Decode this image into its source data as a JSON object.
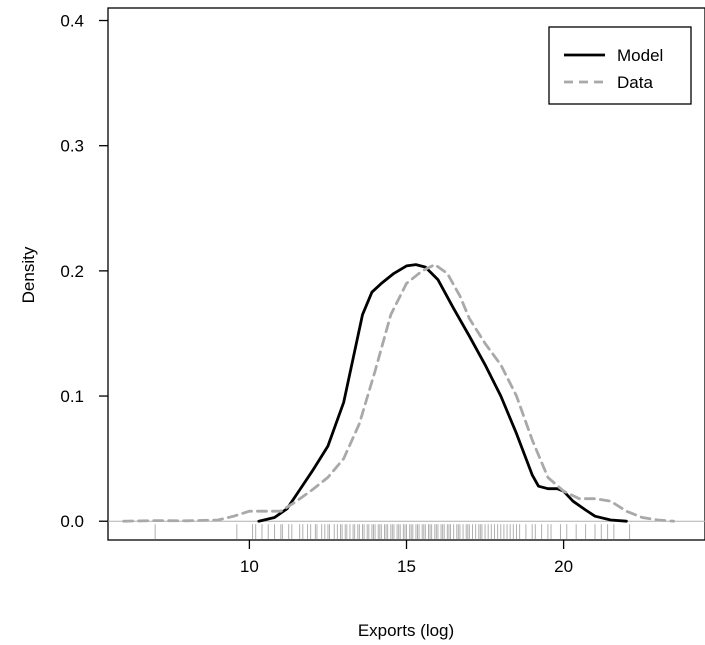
{
  "chart_data": {
    "type": "line",
    "title": "",
    "xlabel": "Exports (log)",
    "ylabel": "Density",
    "xlim": [
      5.5,
      24.5
    ],
    "ylim": [
      -0.015,
      0.41
    ],
    "xticks": [
      10,
      15,
      20
    ],
    "yticks": [
      0.0,
      0.1,
      0.2,
      0.3,
      0.4
    ],
    "xtick_labels": [
      "10",
      "15",
      "20"
    ],
    "ytick_labels": [
      "0.0",
      "0.1",
      "0.2",
      "0.3",
      "0.4"
    ],
    "legend_position": "top-right",
    "grid": false,
    "reference_line_y": 0,
    "series": [
      {
        "name": "Model",
        "color": "#000000",
        "dash": "solid",
        "x": [
          10.3,
          10.8,
          11.2,
          11.6,
          12.0,
          12.5,
          13.0,
          13.3,
          13.6,
          13.9,
          14.2,
          14.6,
          15.0,
          15.3,
          15.6,
          16.0,
          16.5,
          17.0,
          17.5,
          18.0,
          18.5,
          19.0,
          19.2,
          19.5,
          19.8,
          20.0,
          20.3,
          20.7,
          21.0,
          21.5,
          22.0
        ],
        "y": [
          0.0,
          0.003,
          0.01,
          0.025,
          0.04,
          0.06,
          0.095,
          0.13,
          0.165,
          0.183,
          0.19,
          0.198,
          0.204,
          0.205,
          0.203,
          0.193,
          0.17,
          0.148,
          0.125,
          0.1,
          0.07,
          0.037,
          0.028,
          0.026,
          0.026,
          0.024,
          0.016,
          0.009,
          0.004,
          0.001,
          0.0
        ]
      },
      {
        "name": "Data",
        "color": "#a9a9a9",
        "dash": "dashed",
        "x": [
          6.0,
          7.0,
          8.0,
          9.0,
          9.5,
          10.0,
          10.5,
          11.0,
          11.5,
          12.0,
          12.5,
          13.0,
          13.5,
          14.0,
          14.5,
          15.0,
          15.5,
          15.9,
          16.3,
          16.7,
          17.0,
          17.5,
          18.0,
          18.5,
          19.0,
          19.5,
          20.0,
          20.5,
          21.0,
          21.5,
          22.0,
          22.5,
          23.0,
          23.5
        ],
        "y": [
          0.0,
          0.0005,
          0.0003,
          0.001,
          0.004,
          0.008,
          0.008,
          0.008,
          0.016,
          0.025,
          0.035,
          0.05,
          0.078,
          0.12,
          0.165,
          0.19,
          0.2,
          0.205,
          0.198,
          0.18,
          0.162,
          0.142,
          0.125,
          0.1,
          0.065,
          0.035,
          0.024,
          0.018,
          0.018,
          0.016,
          0.008,
          0.003,
          0.001,
          0.0
        ]
      }
    ],
    "rug": {
      "color": "#b0b0b0",
      "x": [
        7.0,
        9.6,
        10.1,
        10.2,
        10.4,
        10.6,
        10.8,
        11.0,
        11.05,
        11.25,
        11.35,
        11.6,
        11.7,
        11.85,
        11.95,
        12.1,
        12.15,
        12.3,
        12.4,
        12.5,
        12.55,
        12.7,
        12.8,
        12.9,
        12.95,
        13.05,
        13.1,
        13.2,
        13.3,
        13.35,
        13.45,
        13.5,
        13.6,
        13.65,
        13.75,
        13.8,
        13.9,
        13.95,
        14.0,
        14.1,
        14.15,
        14.2,
        14.3,
        14.35,
        14.4,
        14.5,
        14.55,
        14.6,
        14.7,
        14.75,
        14.8,
        14.9,
        14.95,
        15.0,
        15.1,
        15.15,
        15.2,
        15.3,
        15.35,
        15.4,
        15.5,
        15.55,
        15.6,
        15.7,
        15.75,
        15.8,
        15.9,
        15.95,
        16.0,
        16.1,
        16.15,
        16.2,
        16.3,
        16.35,
        16.4,
        16.5,
        16.6,
        16.65,
        16.7,
        16.8,
        16.9,
        16.95,
        17.0,
        17.1,
        17.2,
        17.3,
        17.35,
        17.4,
        17.5,
        17.6,
        17.7,
        17.8,
        17.9,
        18.0,
        18.1,
        18.2,
        18.3,
        18.4,
        18.5,
        18.6,
        18.8,
        19.0,
        19.1,
        19.3,
        19.5,
        19.6,
        19.9,
        20.1,
        20.4,
        20.7,
        21.0,
        21.2,
        21.4,
        21.6,
        22.1
      ]
    }
  }
}
